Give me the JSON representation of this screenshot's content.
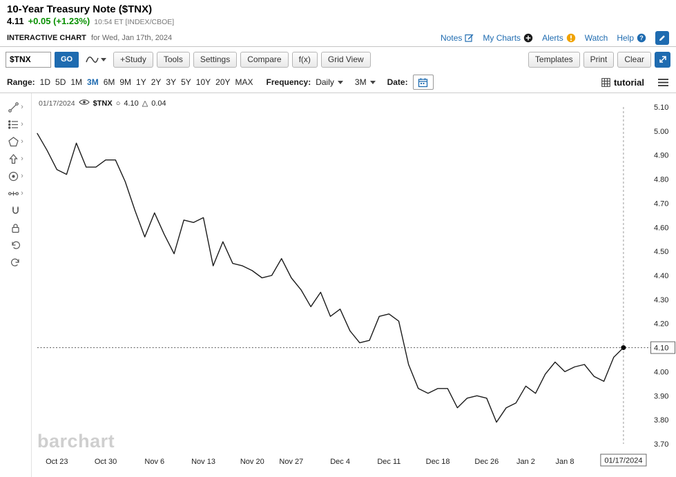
{
  "header": {
    "title": "10-Year Treasury Note ($TNX)",
    "price": "4.11",
    "change": "+0.05 (+1.23%)",
    "session_info": "10:54 ET [INDEX/CBOE]"
  },
  "subheader": {
    "label": "INTERACTIVE CHART",
    "date_text": "for Wed, Jan 17th, 2024",
    "links": [
      {
        "label": "Notes"
      },
      {
        "label": "My Charts"
      },
      {
        "label": "Alerts"
      },
      {
        "label": "Watch"
      },
      {
        "label": "Help"
      }
    ]
  },
  "toolbar": {
    "symbol_value": "$TNX",
    "go_label": "GO",
    "buttons": [
      "+Study",
      "Tools",
      "Settings",
      "Compare",
      "f(x)",
      "Grid View"
    ],
    "right_buttons": [
      "Templates",
      "Print",
      "Clear"
    ]
  },
  "range_bar": {
    "range_label": "Range:",
    "ranges": [
      "1D",
      "5D",
      "1M",
      "3M",
      "6M",
      "9M",
      "1Y",
      "2Y",
      "3Y",
      "5Y",
      "10Y",
      "20Y",
      "MAX"
    ],
    "selected_range": "3M",
    "frequency_label": "Frequency:",
    "frequency_value": "Daily",
    "period_value": "3M",
    "date_label": "Date:",
    "tutorial_label": "tutorial"
  },
  "chart_overlay": {
    "crosshair_date": "01/17/2024",
    "symbol": "$TNX",
    "price_marker": "○",
    "price": "4.10",
    "change_marker": "△",
    "change": "0.04"
  },
  "watermark": "barchart",
  "chart_data": {
    "type": "line",
    "title": "10-Year Treasury Note ($TNX) — 3M, Daily",
    "xlabel": "",
    "ylabel": "",
    "ylim": [
      3.7,
      5.1
    ],
    "y_tick_step": 0.1,
    "grid": false,
    "legend_position": "top-left",
    "line_color": "#1b1b1b",
    "x_ticks": [
      {
        "label": "Oct 23",
        "i": 2
      },
      {
        "label": "Oct 30",
        "i": 7
      },
      {
        "label": "Nov 6",
        "i": 12
      },
      {
        "label": "Nov 13",
        "i": 17
      },
      {
        "label": "Nov 20",
        "i": 22
      },
      {
        "label": "Nov 27",
        "i": 26
      },
      {
        "label": "Dec 4",
        "i": 31
      },
      {
        "label": "Dec 11",
        "i": 36
      },
      {
        "label": "Dec 18",
        "i": 41
      },
      {
        "label": "Dec 26",
        "i": 46
      },
      {
        "label": "Jan 2",
        "i": 50
      },
      {
        "label": "Jan 8",
        "i": 54
      }
    ],
    "values": [
      4.99,
      4.92,
      4.84,
      4.82,
      4.95,
      4.85,
      4.85,
      4.88,
      4.88,
      4.79,
      4.67,
      4.56,
      4.66,
      4.57,
      4.49,
      4.63,
      4.62,
      4.64,
      4.44,
      4.54,
      4.45,
      4.44,
      4.42,
      4.39,
      4.4,
      4.47,
      4.39,
      4.34,
      4.27,
      4.33,
      4.23,
      4.26,
      4.17,
      4.12,
      4.13,
      4.23,
      4.24,
      4.21,
      4.03,
      3.93,
      3.91,
      3.93,
      3.93,
      3.85,
      3.89,
      3.9,
      3.89,
      3.79,
      3.85,
      3.87,
      3.94,
      3.91,
      3.99,
      4.04,
      4.0,
      4.02,
      4.03,
      3.98,
      3.96,
      4.06,
      4.1
    ],
    "last_value": 4.1,
    "last_date_label": "01/17/2024"
  }
}
